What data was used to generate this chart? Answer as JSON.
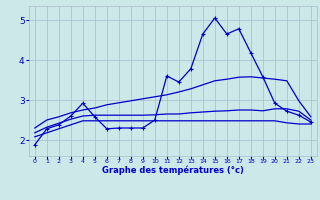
{
  "xlabel": "Graphe des températures (°c)",
  "xlim": [
    -0.5,
    23.5
  ],
  "ylim": [
    1.6,
    5.35
  ],
  "xticks": [
    0,
    1,
    2,
    3,
    4,
    5,
    6,
    7,
    8,
    9,
    10,
    11,
    12,
    13,
    14,
    15,
    16,
    17,
    18,
    19,
    20,
    21,
    22,
    23
  ],
  "yticks": [
    2,
    3,
    4,
    5
  ],
  "background_color": "#cce8e8",
  "grid_color": "#aabbcc",
  "line_color": "#0000cc",
  "hours": [
    0,
    1,
    2,
    3,
    4,
    5,
    6,
    7,
    8,
    9,
    10,
    11,
    12,
    13,
    14,
    15,
    16,
    17,
    18,
    19,
    20,
    21,
    22,
    23
  ],
  "temp_actual": [
    1.88,
    2.28,
    2.38,
    2.6,
    2.92,
    2.58,
    2.28,
    2.3,
    2.3,
    2.3,
    2.5,
    3.6,
    3.45,
    3.78,
    4.65,
    5.05,
    4.65,
    4.78,
    4.18,
    3.58,
    2.92,
    2.72,
    2.62,
    2.45
  ],
  "temp_max": [
    2.3,
    2.5,
    2.58,
    2.68,
    2.75,
    2.8,
    2.88,
    2.93,
    2.98,
    3.03,
    3.08,
    3.13,
    3.2,
    3.28,
    3.38,
    3.48,
    3.52,
    3.57,
    3.58,
    3.55,
    3.52,
    3.48,
    2.98,
    2.58
  ],
  "temp_mean": [
    2.18,
    2.32,
    2.42,
    2.52,
    2.6,
    2.62,
    2.62,
    2.62,
    2.62,
    2.62,
    2.63,
    2.65,
    2.65,
    2.68,
    2.7,
    2.72,
    2.73,
    2.75,
    2.75,
    2.73,
    2.78,
    2.78,
    2.72,
    2.5
  ],
  "temp_min": [
    2.08,
    2.18,
    2.28,
    2.38,
    2.48,
    2.48,
    2.48,
    2.48,
    2.48,
    2.48,
    2.48,
    2.48,
    2.48,
    2.48,
    2.48,
    2.48,
    2.48,
    2.48,
    2.48,
    2.48,
    2.48,
    2.43,
    2.4,
    2.4
  ]
}
